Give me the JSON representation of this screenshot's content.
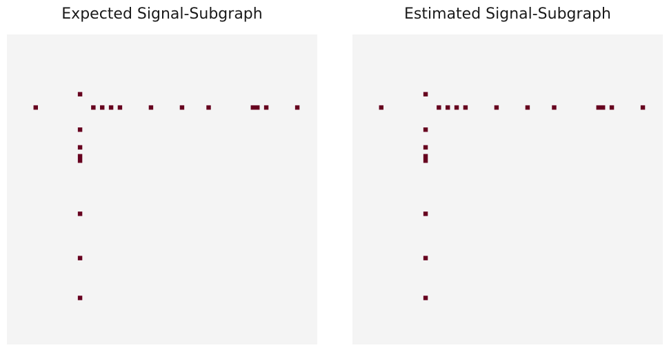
{
  "chart_data": [
    {
      "type": "heatmap",
      "title": "Expected Signal-Subgraph",
      "grid_size": 70,
      "background_color": "#f4f4f4",
      "cell_color": "#67001f",
      "cells": [
        [
          13,
          16
        ],
        [
          16,
          6
        ],
        [
          16,
          19
        ],
        [
          16,
          21
        ],
        [
          16,
          23
        ],
        [
          16,
          25
        ],
        [
          16,
          32
        ],
        [
          16,
          39
        ],
        [
          16,
          45
        ],
        [
          16,
          55
        ],
        [
          16,
          56
        ],
        [
          16,
          58
        ],
        [
          16,
          65
        ],
        [
          21,
          16
        ],
        [
          25,
          16
        ],
        [
          27,
          16
        ],
        [
          28,
          16
        ],
        [
          40,
          16
        ],
        [
          50,
          16
        ],
        [
          59,
          16
        ]
      ],
      "axes_visible": false,
      "grid": false
    },
    {
      "type": "heatmap",
      "title": "Estimated Signal-Subgraph",
      "grid_size": 70,
      "background_color": "#f4f4f4",
      "cell_color": "#67001f",
      "cells": [
        [
          13,
          16
        ],
        [
          16,
          6
        ],
        [
          16,
          19
        ],
        [
          16,
          21
        ],
        [
          16,
          23
        ],
        [
          16,
          25
        ],
        [
          16,
          32
        ],
        [
          16,
          39
        ],
        [
          16,
          45
        ],
        [
          16,
          55
        ],
        [
          16,
          56
        ],
        [
          16,
          58
        ],
        [
          16,
          65
        ],
        [
          21,
          16
        ],
        [
          25,
          16
        ],
        [
          27,
          16
        ],
        [
          28,
          16
        ],
        [
          40,
          16
        ],
        [
          50,
          16
        ],
        [
          59,
          16
        ]
      ],
      "axes_visible": false,
      "grid": false
    }
  ]
}
